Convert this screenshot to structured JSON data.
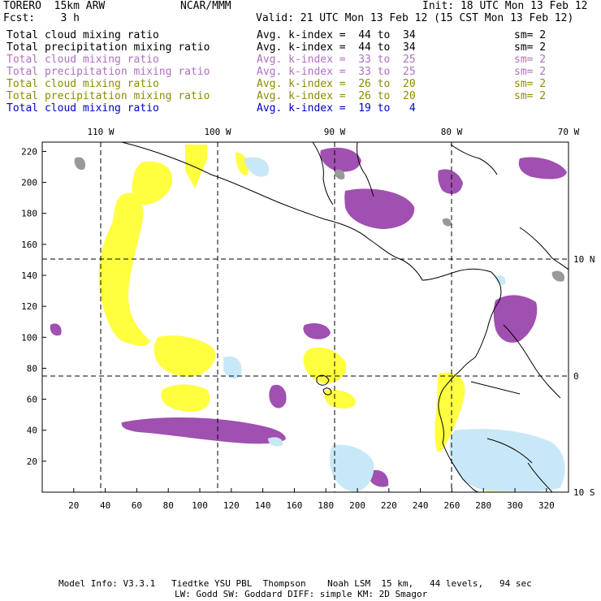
{
  "header": {
    "model": "TORERO  15km ARW",
    "org": "NCAR/MMM",
    "init": "Init: 18 UTC Mon 13 Feb 12",
    "fcst": "Fcst:    3 h",
    "valid": "Valid: 21 UTC Mon 13 Feb 12 (15 CST Mon 13 Feb 12)"
  },
  "legend": [
    {
      "field": "Total cloud mixing ratio",
      "range": "Avg. k-index =  44 to  34",
      "sm": "sm= 2",
      "color": "#000000"
    },
    {
      "field": "Total precipitation mixing ratio",
      "range": "Avg. k-index =  44 to  34",
      "sm": "sm= 2",
      "color": "#000000"
    },
    {
      "field": "Total cloud mixing ratio",
      "range": "Avg. k-index =  33 to  25",
      "sm": "sm= 2",
      "color": "#b070c0"
    },
    {
      "field": "Total precipitation mixing ratio",
      "range": "Avg. k-index =  33 to  25",
      "sm": "sm= 2",
      "color": "#b070c0"
    },
    {
      "field": "Total cloud mixing ratio",
      "range": "Avg. k-index =  26 to  20",
      "sm": "sm= 2",
      "color": "#8c8c00"
    },
    {
      "field": "Total precipitation mixing ratio",
      "range": "Avg. k-index =  26 to  20",
      "sm": "sm= 2",
      "color": "#8c8c00"
    },
    {
      "field": "Total cloud mixing ratio",
      "range": "Avg. k-index =  19 to   4",
      "sm": "",
      "color": "#0000cc"
    }
  ],
  "map": {
    "lon_labels": [
      "110 W",
      "100 W",
      "90 W",
      "80 W",
      "70 W"
    ],
    "lat_labels": [
      "10 N",
      "0",
      "10 S"
    ],
    "x_ticks": [
      "20",
      "40",
      "60",
      "80",
      "100",
      "120",
      "140",
      "160",
      "180",
      "200",
      "220",
      "240",
      "260",
      "280",
      "300",
      "320"
    ],
    "y_ticks": [
      "20",
      "40",
      "60",
      "80",
      "100",
      "120",
      "140",
      "160",
      "180",
      "200",
      "220"
    ],
    "colors": {
      "cloud_high": "#999999",
      "cloud_mid": "#a050b0",
      "cloud_low": "#ffff40",
      "cloud_shallow": "#c8e8f8",
      "coast": "#000000",
      "grid": "#000000"
    }
  },
  "footer": {
    "line1": "Model Info: V3.3.1   Tiedtke YSU PBL  Thompson    Noah LSM  15 km,   44 levels,   94 sec",
    "line2": "LW: Godd SW: Goddard DIFF: simple KM: 2D Smagor"
  }
}
